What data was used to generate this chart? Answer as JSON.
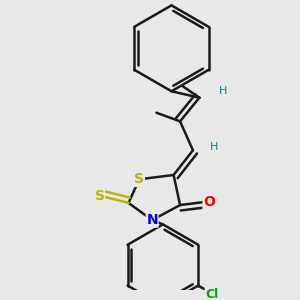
{
  "bg_color": "#e8e8e8",
  "bond_color": "#1a1a1a",
  "bond_width": 1.8,
  "atom_colors": {
    "S_ring": "#b8b800",
    "S_exo": "#b8b800",
    "N": "#0000ff",
    "O": "#ff0000",
    "Cl": "#00aa00",
    "H": "#008b8b",
    "C": "#1a1a1a"
  },
  "font_size_atom": 10,
  "font_size_h": 8,
  "font_size_cl": 9
}
